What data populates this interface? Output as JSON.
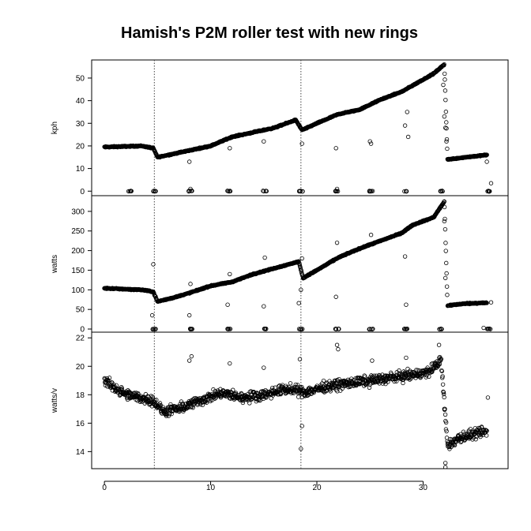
{
  "chart_data": {
    "type": "scatter",
    "title": "Hamish's P2M roller test with new rings",
    "x_ticks": [
      "0",
      "10",
      "20",
      "30"
    ],
    "xlim": [
      -1.2,
      38
    ],
    "vlines": [
      4.7,
      18.5
    ],
    "panels": [
      {
        "name": "kph",
        "ylabel": "kph",
        "ylim": [
          -2,
          58
        ],
        "y_ticks": [
          0,
          10,
          20,
          30,
          40,
          50
        ],
        "y_tick_labels": [
          "0",
          "10",
          "20",
          "30",
          "40",
          "50"
        ],
        "trend": [
          [
            0,
            19.5
          ],
          [
            3.5,
            20
          ],
          [
            4.6,
            19
          ],
          [
            5,
            15
          ],
          [
            6.5,
            16.5
          ],
          [
            8,
            18
          ],
          [
            10,
            20
          ],
          [
            12,
            24
          ],
          [
            14,
            26
          ],
          [
            16,
            28
          ],
          [
            18,
            31.5
          ],
          [
            18.6,
            27
          ],
          [
            20,
            30
          ],
          [
            22,
            34
          ],
          [
            24,
            36
          ],
          [
            26,
            40.5
          ],
          [
            28,
            44
          ],
          [
            29.5,
            48
          ],
          [
            31,
            52
          ],
          [
            32,
            56
          ],
          [
            32.3,
            14
          ],
          [
            34,
            15
          ],
          [
            36,
            16
          ]
        ],
        "zero_clusters": [
          2.4,
          4.7,
          8.1,
          11.7,
          15.1,
          18.5,
          21.9,
          25.1,
          28.4,
          31.7,
          36.2
        ],
        "outliers": [
          [
            8,
            13
          ],
          [
            11.8,
            19
          ],
          [
            15,
            22
          ],
          [
            18.6,
            21
          ],
          [
            21.8,
            19
          ],
          [
            25,
            22
          ],
          [
            25.1,
            21
          ],
          [
            28.3,
            29
          ],
          [
            28.6,
            24
          ],
          [
            28.5,
            35
          ],
          [
            31.9,
            47
          ],
          [
            32,
            33
          ],
          [
            32.1,
            28
          ],
          [
            32.2,
            22
          ],
          [
            36,
            13
          ],
          [
            36.4,
            3.5
          ],
          [
            8.1,
            1
          ],
          [
            21.9,
            1
          ]
        ]
      },
      {
        "name": "watts",
        "ylabel": "watts",
        "ylim": [
          -8,
          340
        ],
        "y_ticks": [
          0,
          50,
          100,
          150,
          200,
          250,
          300
        ],
        "y_tick_labels": [
          "0",
          "50",
          "100",
          "150",
          "200",
          "250",
          "300"
        ],
        "trend": [
          [
            0,
            104
          ],
          [
            3.5,
            100
          ],
          [
            4.6,
            95
          ],
          [
            5,
            70
          ],
          [
            6.5,
            80
          ],
          [
            8,
            92
          ],
          [
            10,
            110
          ],
          [
            12,
            120
          ],
          [
            14,
            140
          ],
          [
            16,
            155
          ],
          [
            18.3,
            172
          ],
          [
            18.7,
            130
          ],
          [
            20,
            150
          ],
          [
            22,
            182
          ],
          [
            24,
            205
          ],
          [
            26,
            225
          ],
          [
            28,
            245
          ],
          [
            29,
            265
          ],
          [
            31,
            285
          ],
          [
            32,
            325
          ],
          [
            32.3,
            60
          ],
          [
            34,
            65
          ],
          [
            36,
            67
          ]
        ],
        "zero_clusters": [
          4.7,
          8.1,
          11.7,
          15.1,
          18.5,
          21.9,
          25.1,
          28.4,
          31.7,
          36.2
        ],
        "outliers": [
          [
            4.6,
            165
          ],
          [
            4.5,
            35
          ],
          [
            8,
            35
          ],
          [
            8.1,
            115
          ],
          [
            11.6,
            62
          ],
          [
            11.8,
            140
          ],
          [
            15,
            58
          ],
          [
            15.1,
            182
          ],
          [
            18.3,
            66
          ],
          [
            18.5,
            100
          ],
          [
            18.6,
            180
          ],
          [
            21.8,
            82
          ],
          [
            21.9,
            220
          ],
          [
            25.1,
            240
          ],
          [
            28.3,
            185
          ],
          [
            28.4,
            62
          ],
          [
            32.1,
            130
          ],
          [
            32,
            275
          ],
          [
            35.7,
            3
          ],
          [
            36.4,
            68
          ]
        ]
      },
      {
        "name": "watts/v",
        "ylabel": "watts/v",
        "ylim": [
          12.8,
          22.4
        ],
        "y_ticks": [
          14,
          16,
          18,
          20,
          22
        ],
        "y_tick_labels": [
          "14",
          "16",
          "18",
          "20",
          "22"
        ],
        "trend": [
          [
            0,
            19
          ],
          [
            2,
            18
          ],
          [
            4.6,
            17.6
          ],
          [
            5.5,
            16.8
          ],
          [
            7,
            17
          ],
          [
            9,
            17.6
          ],
          [
            11,
            18.1
          ],
          [
            13,
            17.8
          ],
          [
            15,
            18
          ],
          [
            17,
            18.4
          ],
          [
            19,
            18.2
          ],
          [
            21,
            18.6
          ],
          [
            23,
            18.8
          ],
          [
            25,
            19
          ],
          [
            27,
            19.2
          ],
          [
            29,
            19.4
          ],
          [
            30.5,
            19.6
          ],
          [
            31.7,
            20.4
          ],
          [
            32.3,
            14.4
          ],
          [
            33.5,
            15
          ],
          [
            36,
            15.4
          ]
        ],
        "zero_clusters": [],
        "outliers": [
          [
            8.2,
            20.7
          ],
          [
            8,
            20.4
          ],
          [
            11.8,
            20.2
          ],
          [
            15,
            19.9
          ],
          [
            18.4,
            20.5
          ],
          [
            18.6,
            15.8
          ],
          [
            18.5,
            14.2
          ],
          [
            21.9,
            21.5
          ],
          [
            22,
            21.2
          ],
          [
            25.2,
            20.4
          ],
          [
            28.4,
            20.6
          ],
          [
            31.5,
            21.5
          ],
          [
            32,
            17
          ],
          [
            32.1,
            13.2
          ],
          [
            32.1,
            12.9
          ],
          [
            36.1,
            17.8
          ]
        ]
      }
    ]
  }
}
